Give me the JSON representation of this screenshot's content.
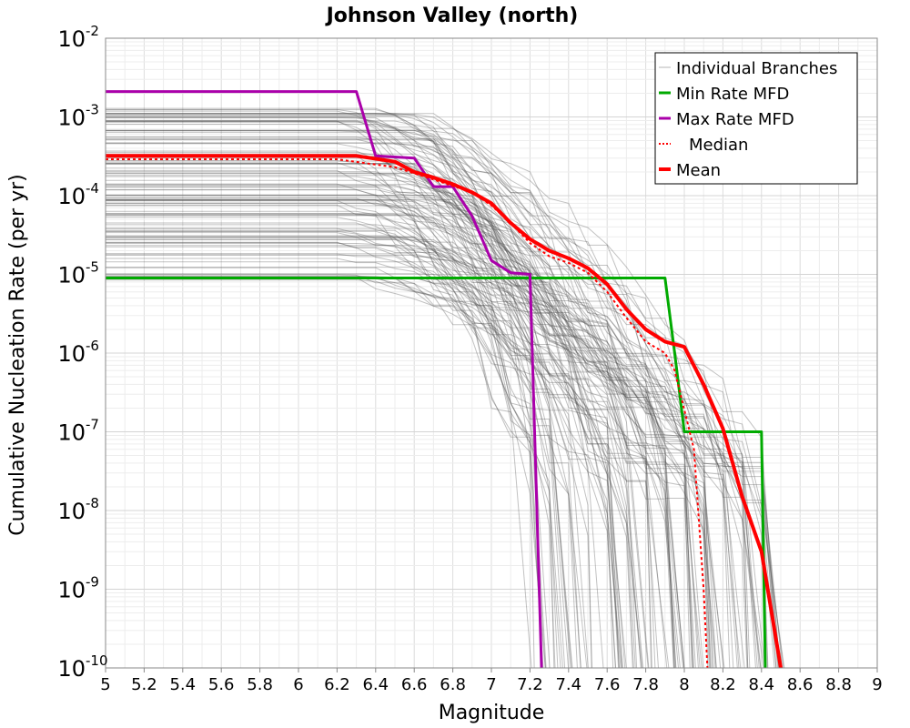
{
  "chart_data": {
    "type": "line",
    "title": "Johnson Valley (north)",
    "xlabel": "Magnitude",
    "ylabel": "Cumulative Nucleation Rate (per yr)",
    "xlim": [
      5,
      9
    ],
    "ylim_log10": [
      -10,
      -2
    ],
    "yscale": "log",
    "grid": true,
    "legend_position": "top-right",
    "x_ticks": [
      "5",
      "5.2",
      "5.4",
      "5.6",
      "5.8",
      "6",
      "6.2",
      "6.4",
      "6.6",
      "6.8",
      "7",
      "7.2",
      "7.4",
      "7.6",
      "7.8",
      "8",
      "8.2",
      "8.4",
      "8.6",
      "8.8",
      "9"
    ],
    "y_ticks": [
      {
        "base": "10",
        "exp": "-2",
        "log10": -2
      },
      {
        "base": "10",
        "exp": "-3",
        "log10": -3
      },
      {
        "base": "10",
        "exp": "-4",
        "log10": -4
      },
      {
        "base": "10",
        "exp": "-5",
        "log10": -5
      },
      {
        "base": "10",
        "exp": "-6",
        "log10": -6
      },
      {
        "base": "10",
        "exp": "-7",
        "log10": -7
      },
      {
        "base": "10",
        "exp": "-8",
        "log10": -8
      },
      {
        "base": "10",
        "exp": "-9",
        "log10": -9
      },
      {
        "base": "10",
        "exp": "-10",
        "log10": -10
      }
    ],
    "legend": [
      {
        "label": "Individual Branches",
        "color": "#b4b4b4",
        "style": "thin"
      },
      {
        "label": "Min Rate MFD",
        "color": "#00aa00",
        "style": "solid"
      },
      {
        "label": "Max Rate MFD",
        "color": "#aa00aa",
        "style": "solid"
      },
      {
        "label": "Median",
        "color": "#ff0000",
        "style": "dotted"
      },
      {
        "label": "Mean",
        "color": "#ff0000",
        "style": "thick"
      }
    ],
    "series": [
      {
        "name": "Min Rate MFD",
        "color": "#00aa00",
        "width": 3,
        "points": [
          [
            5.0,
            9e-06
          ],
          [
            7.9,
            9e-06
          ],
          [
            7.95,
            1e-06
          ],
          [
            8.0,
            1e-07
          ],
          [
            8.4,
            1e-07
          ],
          [
            8.42,
            1e-10
          ]
        ]
      },
      {
        "name": "Max Rate MFD",
        "color": "#aa00aa",
        "width": 3,
        "points": [
          [
            5.0,
            0.0021
          ],
          [
            6.3,
            0.0021
          ],
          [
            6.4,
            0.00032
          ],
          [
            6.6,
            0.0003
          ],
          [
            6.7,
            0.00013
          ],
          [
            6.8,
            0.00013
          ],
          [
            6.9,
            5.5e-05
          ],
          [
            7.0,
            1.5e-05
          ],
          [
            7.1,
            1.05e-05
          ],
          [
            7.2,
            1e-05
          ],
          [
            7.26,
            1e-10
          ]
        ]
      },
      {
        "name": "Median",
        "color": "#ff0000",
        "width": 2,
        "dash": "3,3",
        "points": [
          [
            5.0,
            0.00029
          ],
          [
            6.2,
            0.00029
          ],
          [
            6.5,
            0.00023
          ],
          [
            6.7,
            0.00016
          ],
          [
            6.9,
            0.00011
          ],
          [
            7.0,
            7.5e-05
          ],
          [
            7.1,
            4.5e-05
          ],
          [
            7.2,
            2.5e-05
          ],
          [
            7.3,
            1.7e-05
          ],
          [
            7.4,
            1.4e-05
          ],
          [
            7.5,
            1.05e-05
          ],
          [
            7.6,
            6e-06
          ],
          [
            7.7,
            2.8e-06
          ],
          [
            7.8,
            1.4e-06
          ],
          [
            7.9,
            1e-06
          ],
          [
            7.95,
            6e-07
          ],
          [
            8.05,
            6e-08
          ],
          [
            8.1,
            1e-09
          ],
          [
            8.12,
            1e-10
          ]
        ]
      },
      {
        "name": "Mean",
        "color": "#ff0000",
        "width": 4,
        "points": [
          [
            5.0,
            0.00032
          ],
          [
            6.3,
            0.00032
          ],
          [
            6.5,
            0.00027
          ],
          [
            6.6,
            0.0002
          ],
          [
            6.7,
            0.00017
          ],
          [
            6.8,
            0.00014
          ],
          [
            6.9,
            0.00011
          ],
          [
            7.0,
            8e-05
          ],
          [
            7.1,
            4.5e-05
          ],
          [
            7.2,
            2.8e-05
          ],
          [
            7.3,
            2e-05
          ],
          [
            7.4,
            1.6e-05
          ],
          [
            7.5,
            1.2e-05
          ],
          [
            7.6,
            7.5e-06
          ],
          [
            7.7,
            3.6e-06
          ],
          [
            7.8,
            2e-06
          ],
          [
            7.9,
            1.4e-06
          ],
          [
            8.0,
            1.2e-06
          ],
          [
            8.1,
            4e-07
          ],
          [
            8.2,
            1.1e-07
          ],
          [
            8.3,
            1.5e-08
          ],
          [
            8.4,
            3e-09
          ],
          [
            8.5,
            1e-10
          ]
        ]
      }
    ],
    "branch_band": {
      "name": "Individual Branches",
      "color": "#505050",
      "count": 120,
      "plateau_log10_range": [
        -5.1,
        -2.8
      ],
      "cutoff_magnitude_range": [
        7.15,
        8.5
      ]
    }
  }
}
